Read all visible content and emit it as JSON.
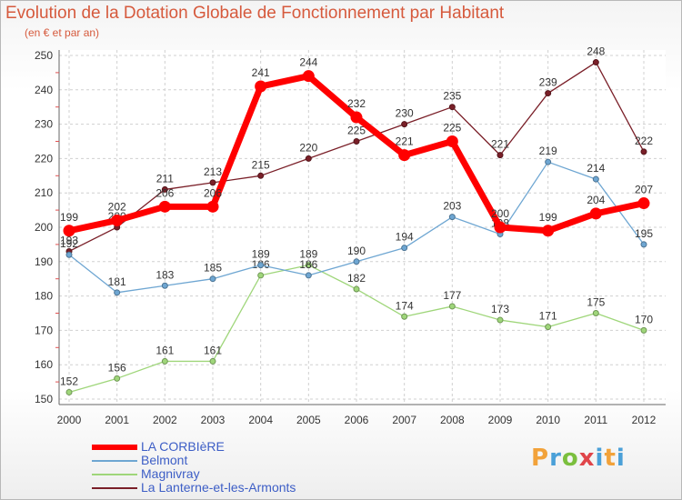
{
  "title": "Evolution de la Dotation Globale de Fonctionnement par Habitant",
  "subtitle": "(en € et par an)",
  "brand": "Proxiti",
  "chart_data": {
    "type": "line",
    "categories": [
      "2000",
      "2001",
      "2002",
      "2003",
      "2004",
      "2005",
      "2006",
      "2007",
      "2008",
      "2009",
      "2010",
      "2011",
      "2012"
    ],
    "ylim": [
      150,
      250
    ],
    "yticks": [
      150,
      160,
      170,
      180,
      190,
      200,
      210,
      220,
      230,
      240,
      250
    ],
    "grid": true,
    "legend_position": "bottom-left",
    "series": [
      {
        "name": "La Lanterne-et-les-Armonts",
        "color": "#7a1f28",
        "width": 1.3,
        "values": [
          193,
          200,
          211,
          213,
          215,
          220,
          225,
          230,
          235,
          221,
          239,
          248,
          222
        ]
      },
      {
        "name": "Magnivray",
        "color": "#9fd67a",
        "width": 1.3,
        "values": [
          152,
          156,
          161,
          161,
          186,
          189,
          182,
          174,
          177,
          173,
          171,
          175,
          170
        ]
      },
      {
        "name": "Belmont",
        "color": "#6ea6d2",
        "width": 1.3,
        "values": [
          192,
          181,
          183,
          185,
          189,
          186,
          190,
          194,
          203,
          198,
          219,
          214,
          195
        ]
      },
      {
        "name": "LA CORBIèRE",
        "color": "#ff0000",
        "width": 7,
        "values": [
          199,
          202,
          206,
          206,
          241,
          244,
          232,
          221,
          225,
          200,
          199,
          204,
          207
        ]
      }
    ]
  },
  "legend": [
    {
      "label": "LA CORBIèRE",
      "color": "#ff0000",
      "thickness": 6
    },
    {
      "label": "Belmont",
      "color": "#6ea6d2",
      "thickness": 2
    },
    {
      "label": "Magnivray",
      "color": "#9fd67a",
      "thickness": 2
    },
    {
      "label": "La Lanterne-et-les-Armonts",
      "color": "#7a1f28",
      "thickness": 2
    }
  ]
}
